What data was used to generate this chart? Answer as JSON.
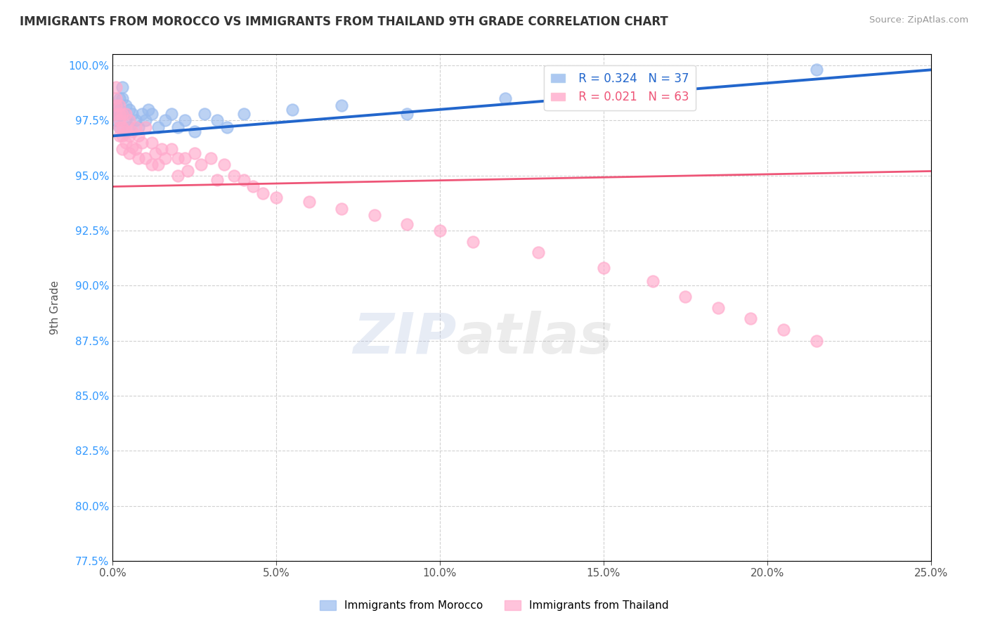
{
  "title": "IMMIGRANTS FROM MOROCCO VS IMMIGRANTS FROM THAILAND 9TH GRADE CORRELATION CHART",
  "source": "Source: ZipAtlas.com",
  "ylabel": "9th Grade",
  "xlim": [
    0.0,
    0.25
  ],
  "ylim": [
    0.775,
    1.005
  ],
  "xticks": [
    0.0,
    0.05,
    0.1,
    0.15,
    0.2,
    0.25
  ],
  "yticks": [
    0.775,
    0.8,
    0.825,
    0.85,
    0.875,
    0.9,
    0.925,
    0.95,
    0.975,
    1.0
  ],
  "morocco_R": 0.324,
  "morocco_N": 37,
  "thailand_R": 0.021,
  "thailand_N": 63,
  "morocco_color": "#99BBEE",
  "thailand_color": "#FFAACC",
  "morocco_line_color": "#2266CC",
  "thailand_line_color": "#EE5577",
  "legend_morocco": "Immigrants from Morocco",
  "legend_thailand": "Immigrants from Thailand",
  "morocco_x": [
    0.001,
    0.001,
    0.001,
    0.002,
    0.002,
    0.002,
    0.002,
    0.003,
    0.003,
    0.003,
    0.004,
    0.004,
    0.005,
    0.005,
    0.006,
    0.007,
    0.008,
    0.009,
    0.01,
    0.011,
    0.012,
    0.014,
    0.016,
    0.018,
    0.02,
    0.022,
    0.025,
    0.028,
    0.032,
    0.035,
    0.04,
    0.055,
    0.07,
    0.09,
    0.12,
    0.16,
    0.215
  ],
  "morocco_y": [
    0.98,
    0.978,
    0.975,
    0.985,
    0.98,
    0.978,
    0.972,
    0.99,
    0.985,
    0.978,
    0.982,
    0.975,
    0.98,
    0.972,
    0.978,
    0.975,
    0.972,
    0.978,
    0.975,
    0.98,
    0.978,
    0.972,
    0.975,
    0.978,
    0.972,
    0.975,
    0.97,
    0.978,
    0.975,
    0.972,
    0.978,
    0.98,
    0.982,
    0.978,
    0.985,
    0.99,
    0.998
  ],
  "thailand_x": [
    0.001,
    0.001,
    0.001,
    0.001,
    0.002,
    0.002,
    0.002,
    0.002,
    0.002,
    0.003,
    0.003,
    0.003,
    0.003,
    0.004,
    0.004,
    0.004,
    0.005,
    0.005,
    0.005,
    0.006,
    0.006,
    0.007,
    0.007,
    0.008,
    0.008,
    0.009,
    0.01,
    0.01,
    0.012,
    0.012,
    0.013,
    0.014,
    0.015,
    0.016,
    0.018,
    0.02,
    0.02,
    0.022,
    0.023,
    0.025,
    0.027,
    0.03,
    0.032,
    0.034,
    0.037,
    0.04,
    0.043,
    0.046,
    0.05,
    0.06,
    0.07,
    0.08,
    0.09,
    0.1,
    0.11,
    0.13,
    0.15,
    0.165,
    0.175,
    0.185,
    0.195,
    0.205,
    0.215
  ],
  "thailand_y": [
    0.99,
    0.985,
    0.982,
    0.978,
    0.982,
    0.978,
    0.975,
    0.972,
    0.968,
    0.978,
    0.972,
    0.968,
    0.962,
    0.978,
    0.97,
    0.965,
    0.975,
    0.968,
    0.96,
    0.97,
    0.963,
    0.972,
    0.962,
    0.968,
    0.958,
    0.965,
    0.972,
    0.958,
    0.965,
    0.955,
    0.96,
    0.955,
    0.962,
    0.958,
    0.962,
    0.958,
    0.95,
    0.958,
    0.952,
    0.96,
    0.955,
    0.958,
    0.948,
    0.955,
    0.95,
    0.948,
    0.945,
    0.942,
    0.94,
    0.938,
    0.935,
    0.932,
    0.928,
    0.925,
    0.92,
    0.915,
    0.908,
    0.902,
    0.895,
    0.89,
    0.885,
    0.88,
    0.875
  ]
}
